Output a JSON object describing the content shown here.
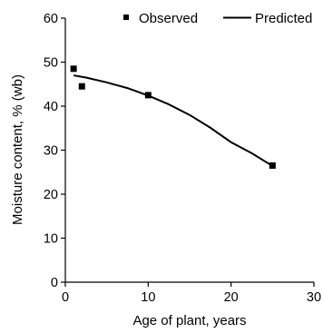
{
  "chart_data": {
    "type": "scatter",
    "xlabel": "Age of plant, years",
    "ylabel": "Moisture content, % (wb)",
    "xlim": [
      0,
      30
    ],
    "ylim": [
      0,
      60
    ],
    "xticks": [
      "0",
      "10",
      "20",
      "30"
    ],
    "yticks": [
      "0",
      "10",
      "20",
      "30",
      "40",
      "50",
      "60"
    ],
    "grid": false,
    "legend_position": "top",
    "series": [
      {
        "name": "Observed",
        "kind": "markers",
        "marker": "square",
        "color": "#000000",
        "x": [
          1,
          2,
          10,
          25
        ],
        "y": [
          48.5,
          44.5,
          42.5,
          26.5
        ]
      },
      {
        "name": "Predicted",
        "kind": "line",
        "color": "#000000",
        "x": [
          1,
          2.5,
          5,
          7.5,
          10,
          12.5,
          15,
          17.5,
          20,
          22.5,
          25
        ],
        "y": [
          47,
          46.5,
          45.4,
          44.1,
          42.4,
          40.4,
          38.0,
          35.1,
          31.8,
          29.3,
          26.4
        ]
      }
    ]
  }
}
